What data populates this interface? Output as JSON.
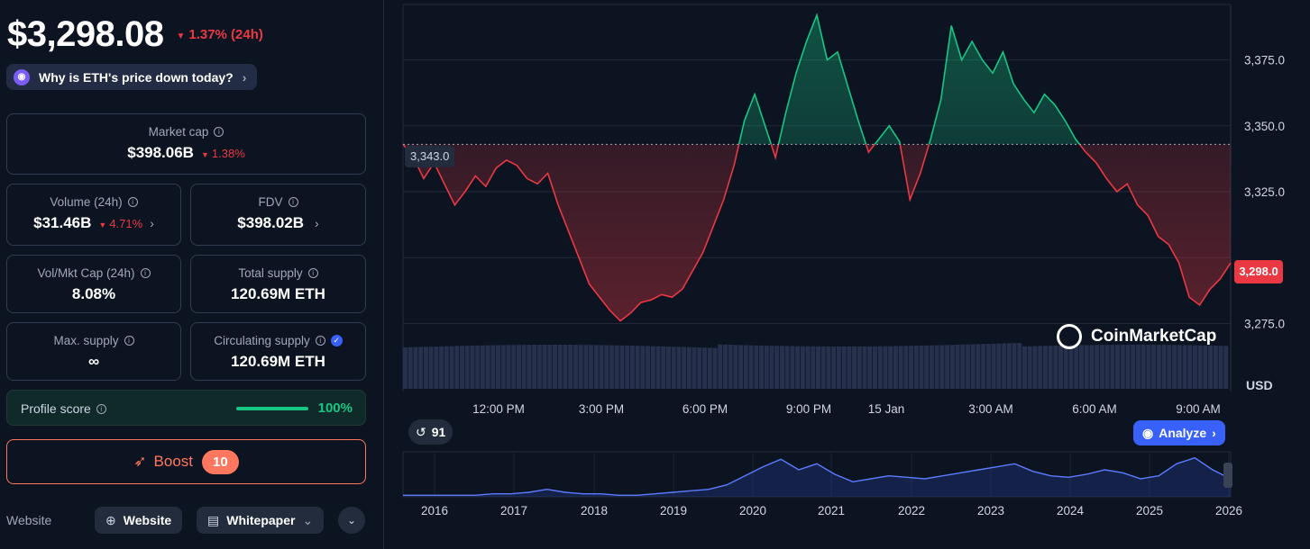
{
  "header": {
    "price": "$3,298.08",
    "change_icon": "triangle-down-icon",
    "change": "1.37% (24h)",
    "why_label": "Why is ETH's price down today?"
  },
  "stats": {
    "market_cap": {
      "label": "Market cap",
      "value": "$398.06B",
      "change": "1.38%"
    },
    "volume": {
      "label": "Volume (24h)",
      "value": "$31.46B",
      "change": "4.71%"
    },
    "fdv": {
      "label": "FDV",
      "value": "$398.02B"
    },
    "vol_mkt_cap": {
      "label": "Vol/Mkt Cap (24h)",
      "value": "8.08%"
    },
    "total_supply": {
      "label": "Total supply",
      "value": "120.69M ETH"
    },
    "max_supply": {
      "label": "Max. supply",
      "value": "∞"
    },
    "circulating_supply": {
      "label": "Circulating supply",
      "value": "120.69M ETH"
    }
  },
  "profile": {
    "label": "Profile score",
    "value": "100%",
    "fill_fraction": 1.0
  },
  "boost": {
    "label": "Boost",
    "badge": "10"
  },
  "links": {
    "label": "Website",
    "website": "Website",
    "whitepaper": "Whitepaper"
  },
  "colors": {
    "bg": "#0d1421",
    "up": "#16c784",
    "down": "#ea3943",
    "accent": "#3861fb",
    "boost": "#ff775f"
  },
  "chart": {
    "reference_price_label": "3,343.0",
    "current_price_label": "3,298.0",
    "currency": "USD",
    "watermark": "CoinMarketCap",
    "history_count": "91",
    "analyze_label": "Analyze"
  },
  "chart_data": [
    {
      "type": "line",
      "y_ticks": [
        "3,375.0",
        "3,350.0",
        "3,325.0",
        "3,275.0"
      ],
      "x_ticks": [
        "12:00 PM",
        "3:00 PM",
        "6:00 PM",
        "9:00 PM",
        "15 Jan",
        "3:00 AM",
        "6:00 AM",
        "9:00 AM"
      ],
      "ylim": [
        3268,
        3395
      ],
      "baseline": 3343.0,
      "last": 3298.0,
      "grid": true,
      "series": [
        {
          "values": [
            3343,
            3338,
            3330,
            3336,
            3328,
            3320,
            3325,
            3331,
            3327,
            3334,
            3337,
            3335,
            3330,
            3328,
            3332,
            3320,
            3310,
            3300,
            3290,
            3285,
            3280,
            3276,
            3279,
            3283,
            3284,
            3286,
            3285,
            3288,
            3295,
            3302,
            3312,
            3322,
            3335,
            3352,
            3362,
            3350,
            3338,
            3355,
            3370,
            3382,
            3392,
            3375,
            3378,
            3365,
            3352,
            3340,
            3345,
            3350,
            3344,
            3322,
            3332,
            3345,
            3360,
            3388,
            3375,
            3382,
            3375,
            3370,
            3378,
            3366,
            3360,
            3355,
            3362,
            3358,
            3352,
            3345,
            3340,
            3336,
            3330,
            3325,
            3328,
            3320,
            3316,
            3308,
            3305,
            3298,
            3285,
            3282,
            3288,
            3292,
            3298
          ]
        }
      ]
    },
    {
      "type": "area",
      "x_ticks": [
        "2016",
        "2017",
        "2018",
        "2019",
        "2020",
        "2021",
        "2022",
        "2023",
        "2024",
        "2025",
        "2026"
      ],
      "series": [
        {
          "values": [
            1,
            1,
            1,
            1,
            1,
            2,
            2,
            3,
            5,
            3,
            2,
            2,
            1,
            1,
            2,
            3,
            4,
            5,
            8,
            14,
            20,
            25,
            18,
            22,
            15,
            10,
            12,
            14,
            13,
            12,
            14,
            16,
            18,
            20,
            22,
            17,
            14,
            13,
            15,
            18,
            16,
            12,
            14,
            22,
            26,
            18,
            12
          ]
        }
      ]
    }
  ]
}
